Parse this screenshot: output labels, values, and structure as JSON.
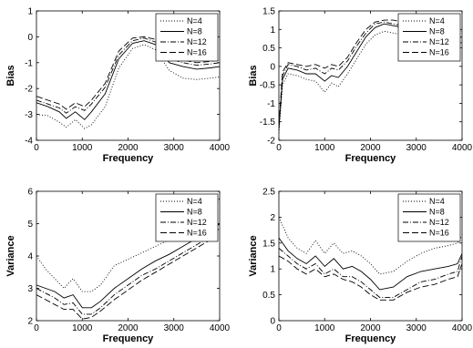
{
  "chart_data": [
    {
      "type": "line",
      "xlabel": "Frequency",
      "ylabel": "Bias",
      "xlim": [
        0,
        4000
      ],
      "ylim": [
        -4,
        1
      ],
      "xticks": [
        "0",
        "1000",
        "2000",
        "3000",
        "4000"
      ],
      "yticks": [
        "-4",
        "-3",
        "-2",
        "-1",
        "0",
        "1"
      ],
      "legend": "top-right",
      "grid": false,
      "series": [
        {
          "name": "N=4",
          "style": "dotted",
          "x": [
            0,
            250,
            500,
            650,
            850,
            1050,
            1200,
            1500,
            1800,
            2100,
            2350,
            2600,
            2900,
            3200,
            3500,
            3800,
            4000
          ],
          "y": [
            -3.0,
            -3.05,
            -3.3,
            -3.5,
            -3.2,
            -3.55,
            -3.4,
            -2.7,
            -1.2,
            -0.45,
            -0.3,
            -0.5,
            -1.3,
            -1.6,
            -1.65,
            -1.6,
            -1.55
          ]
        },
        {
          "name": "N=8",
          "style": "solid",
          "x": [
            0,
            250,
            500,
            650,
            850,
            1050,
            1200,
            1500,
            1800,
            2100,
            2350,
            2600,
            2900,
            3200,
            3500,
            3800,
            4000
          ],
          "y": [
            -2.55,
            -2.7,
            -2.9,
            -3.15,
            -2.9,
            -3.2,
            -2.9,
            -2.2,
            -0.85,
            -0.25,
            -0.15,
            -0.3,
            -1.0,
            -1.15,
            -1.25,
            -1.2,
            -1.15
          ]
        },
        {
          "name": "N=12",
          "style": "dashdot",
          "x": [
            0,
            250,
            500,
            650,
            850,
            1050,
            1200,
            1500,
            1800,
            2100,
            2350,
            2600,
            2900,
            3200,
            3500,
            3800,
            4000
          ],
          "y": [
            -2.45,
            -2.6,
            -2.75,
            -2.95,
            -2.7,
            -2.85,
            -2.6,
            -1.95,
            -0.7,
            -0.15,
            -0.05,
            -0.2,
            -0.85,
            -1.0,
            -1.1,
            -1.05,
            -1.0
          ]
        },
        {
          "name": "N=16",
          "style": "dashed",
          "x": [
            0,
            250,
            500,
            650,
            850,
            1050,
            1200,
            1500,
            1800,
            2100,
            2350,
            2600,
            2900,
            3200,
            3500,
            3800,
            4000
          ],
          "y": [
            -2.3,
            -2.45,
            -2.6,
            -2.8,
            -2.55,
            -2.7,
            -2.45,
            -1.8,
            -0.55,
            -0.05,
            0.0,
            -0.1,
            -0.75,
            -0.9,
            -1.0,
            -0.95,
            -0.9
          ]
        }
      ]
    },
    {
      "type": "line",
      "xlabel": "Frequency",
      "ylabel": "Bias",
      "xlim": [
        0,
        4000
      ],
      "ylim": [
        -2,
        1.5
      ],
      "xticks": [
        "0",
        "1000",
        "2000",
        "3000",
        "4000"
      ],
      "yticks": [
        "-2",
        "-1.5",
        "-1",
        "-0.5",
        "0",
        "0.5",
        "1",
        "1.5"
      ],
      "legend": "top-right",
      "grid": false,
      "series": [
        {
          "name": "N=4",
          "style": "dotted",
          "x": [
            0,
            80,
            200,
            400,
            600,
            800,
            1000,
            1150,
            1300,
            1500,
            1700,
            1900,
            2100,
            2300,
            2500,
            2700,
            3000,
            3300,
            3600,
            3900,
            4000
          ],
          "y": [
            -1.8,
            -0.5,
            -0.2,
            -0.25,
            -0.35,
            -0.4,
            -0.7,
            -0.45,
            -0.55,
            -0.2,
            0.2,
            0.6,
            0.85,
            0.95,
            0.9,
            0.85,
            0.7,
            0.6,
            0.5,
            0.6,
            0.65
          ]
        },
        {
          "name": "N=8",
          "style": "solid",
          "x": [
            0,
            80,
            200,
            400,
            600,
            800,
            1000,
            1150,
            1300,
            1500,
            1700,
            1900,
            2100,
            2300,
            2500,
            2700,
            3000,
            3300,
            3600,
            3900,
            4000
          ],
          "y": [
            -1.7,
            -0.35,
            -0.05,
            -0.1,
            -0.2,
            -0.2,
            -0.4,
            -0.25,
            -0.3,
            0.0,
            0.4,
            0.8,
            1.05,
            1.15,
            1.1,
            1.05,
            0.9,
            0.8,
            0.7,
            0.75,
            0.8
          ]
        },
        {
          "name": "N=12",
          "style": "dashdot",
          "x": [
            0,
            80,
            200,
            400,
            600,
            800,
            1000,
            1150,
            1300,
            1500,
            1700,
            1900,
            2100,
            2300,
            2500,
            2700,
            3000,
            3300,
            3600,
            3900,
            4000
          ],
          "y": [
            -1.65,
            -0.25,
            0.05,
            0.0,
            -0.1,
            -0.05,
            -0.2,
            -0.05,
            -0.1,
            0.15,
            0.55,
            0.9,
            1.15,
            1.2,
            1.15,
            1.1,
            1.0,
            0.9,
            0.8,
            0.85,
            0.9
          ]
        },
        {
          "name": "N=16",
          "style": "dashed",
          "x": [
            0,
            80,
            200,
            400,
            600,
            800,
            1000,
            1150,
            1300,
            1500,
            1700,
            1900,
            2100,
            2300,
            2500,
            2700,
            3000,
            3300,
            3600,
            3900,
            4000
          ],
          "y": [
            -1.6,
            -0.15,
            0.1,
            0.05,
            0.0,
            0.05,
            -0.05,
            0.05,
            0.0,
            0.25,
            0.65,
            1.0,
            1.2,
            1.25,
            1.25,
            1.2,
            1.05,
            0.95,
            0.9,
            0.9,
            0.95
          ]
        }
      ]
    },
    {
      "type": "line",
      "xlabel": "Frequency",
      "ylabel": "Variance",
      "xlim": [
        0,
        4000
      ],
      "ylim": [
        2,
        6
      ],
      "xticks": [
        "0",
        "1000",
        "2000",
        "3000",
        "4000"
      ],
      "yticks": [
        "2",
        "3",
        "4",
        "5",
        "6"
      ],
      "legend": "top-right",
      "grid": false,
      "series": [
        {
          "name": "N=4",
          "style": "dotted",
          "x": [
            0,
            200,
            400,
            600,
            800,
            1000,
            1200,
            1400,
            1700,
            2000,
            2300,
            2600,
            2900,
            3200,
            3500,
            3800,
            4000
          ],
          "y": [
            4.0,
            3.6,
            3.3,
            3.0,
            3.3,
            2.9,
            2.9,
            3.1,
            3.7,
            3.9,
            4.1,
            4.3,
            4.5,
            4.8,
            5.0,
            5.2,
            5.8
          ]
        },
        {
          "name": "N=8",
          "style": "solid",
          "x": [
            0,
            200,
            400,
            600,
            800,
            1000,
            1200,
            1400,
            1700,
            2000,
            2300,
            2600,
            2900,
            3200,
            3500,
            3800,
            4000
          ],
          "y": [
            3.1,
            3.0,
            2.9,
            2.7,
            2.8,
            2.4,
            2.4,
            2.6,
            3.0,
            3.3,
            3.6,
            3.85,
            4.05,
            4.3,
            4.55,
            4.75,
            5.0
          ]
        },
        {
          "name": "N=12",
          "style": "dashdot",
          "x": [
            0,
            200,
            400,
            600,
            800,
            1000,
            1200,
            1400,
            1700,
            2000,
            2300,
            2600,
            2900,
            3200,
            3500,
            3800,
            4000
          ],
          "y": [
            3.0,
            2.85,
            2.7,
            2.5,
            2.55,
            2.2,
            2.2,
            2.4,
            2.8,
            3.1,
            3.4,
            3.6,
            3.85,
            4.1,
            4.35,
            4.6,
            4.85
          ]
        },
        {
          "name": "N=16",
          "style": "dashed",
          "x": [
            0,
            200,
            400,
            600,
            800,
            1000,
            1200,
            1400,
            1700,
            2000,
            2300,
            2600,
            2900,
            3200,
            3500,
            3800,
            4000
          ],
          "y": [
            2.8,
            2.65,
            2.5,
            2.35,
            2.35,
            2.05,
            2.1,
            2.3,
            2.65,
            2.95,
            3.25,
            3.5,
            3.75,
            4.0,
            4.25,
            4.5,
            4.8
          ]
        }
      ]
    },
    {
      "type": "line",
      "xlabel": "Frequency",
      "ylabel": "Variance",
      "xlim": [
        0,
        4000
      ],
      "ylim": [
        0,
        2.5
      ],
      "xticks": [
        "0",
        "1000",
        "2000",
        "3000",
        "4000"
      ],
      "yticks": [
        "0",
        "0.5",
        "1",
        "1.5",
        "2",
        "2.5"
      ],
      "legend": "top-right",
      "grid": false,
      "series": [
        {
          "name": "N=4",
          "style": "dotted",
          "x": [
            0,
            200,
            400,
            600,
            800,
            1000,
            1200,
            1400,
            1600,
            1800,
            2000,
            2200,
            2500,
            2800,
            3100,
            3400,
            3700,
            3900,
            4000
          ],
          "y": [
            2.0,
            1.6,
            1.4,
            1.3,
            1.55,
            1.3,
            1.5,
            1.3,
            1.35,
            1.25,
            1.1,
            0.9,
            0.95,
            1.15,
            1.3,
            1.4,
            1.45,
            1.5,
            1.65
          ]
        },
        {
          "name": "N=8",
          "style": "solid",
          "x": [
            0,
            200,
            400,
            600,
            800,
            1000,
            1200,
            1400,
            1600,
            1800,
            2000,
            2200,
            2500,
            2800,
            3100,
            3400,
            3700,
            3900,
            4000
          ],
          "y": [
            1.6,
            1.35,
            1.2,
            1.1,
            1.25,
            1.05,
            1.2,
            1.0,
            1.05,
            0.95,
            0.8,
            0.6,
            0.65,
            0.85,
            0.95,
            1.0,
            1.05,
            1.1,
            1.3
          ]
        },
        {
          "name": "N=12",
          "style": "dashdot",
          "x": [
            0,
            200,
            400,
            600,
            800,
            1000,
            1200,
            1400,
            1600,
            1800,
            2000,
            2200,
            2500,
            2800,
            3100,
            3400,
            3700,
            3900,
            4000
          ],
          "y": [
            1.4,
            1.25,
            1.1,
            1.0,
            1.1,
            0.9,
            1.0,
            0.85,
            0.85,
            0.75,
            0.6,
            0.45,
            0.45,
            0.6,
            0.75,
            0.8,
            0.9,
            0.95,
            1.25
          ]
        },
        {
          "name": "N=16",
          "style": "dashed",
          "x": [
            0,
            200,
            400,
            600,
            800,
            1000,
            1200,
            1400,
            1600,
            1800,
            2000,
            2200,
            2500,
            2800,
            3100,
            3400,
            3700,
            3900,
            4000
          ],
          "y": [
            1.25,
            1.15,
            1.0,
            0.9,
            1.0,
            0.85,
            0.9,
            0.8,
            0.75,
            0.65,
            0.5,
            0.4,
            0.4,
            0.55,
            0.65,
            0.7,
            0.8,
            0.85,
            1.1
          ]
        }
      ]
    }
  ]
}
